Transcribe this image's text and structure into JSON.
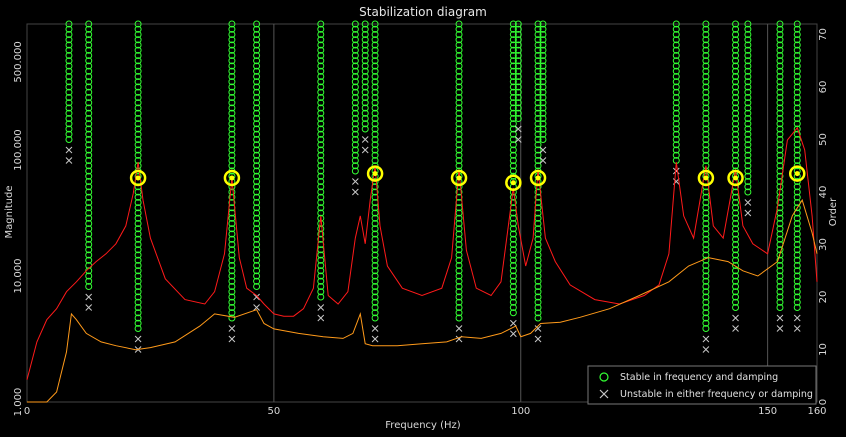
{
  "chart_data": {
    "type": "stabilization",
    "title": "Stabilization diagram",
    "xlabel": "Frequency (Hz)",
    "ylabel": "Magnitude",
    "y2label": "Order",
    "xlim": [
      0,
      160
    ],
    "ylim": [
      1000,
      1000000
    ],
    "ylog": true,
    "y2lim": [
      0,
      72
    ],
    "x_ticks": [
      0,
      50,
      100,
      150,
      160
    ],
    "x_tick_labels": [
      "0",
      "50",
      "100",
      "150",
      "160"
    ],
    "y_ticks": [
      1000,
      10000,
      100000,
      500000
    ],
    "y_tick_labels": [
      "1.000",
      "10.000",
      "100.000",
      "500.000"
    ],
    "y2_ticks": [
      0,
      10,
      20,
      30,
      40,
      50,
      60,
      70
    ],
    "y2_tick_labels": [
      "0",
      "10",
      "20",
      "30",
      "40",
      "50",
      "60",
      "70"
    ],
    "grid": "vertical lines at 50, 100, 150 Hz",
    "legend_position": "bottom-right",
    "legend": [
      {
        "symbol": "circle",
        "color": "#33ff33",
        "label": "Stable in frequency and damping"
      },
      {
        "symbol": "cross",
        "color": "#c8c8c8",
        "label": "Unstable in either frequency or damping"
      }
    ],
    "colors": {
      "stable": "#33ff33",
      "unstable": "#c8c8c8",
      "sum_frf": "#ff1a1a",
      "mif": "#ff9a1a",
      "selected": "#ffff00",
      "grid": "#555555"
    },
    "stable_columns": [
      {
        "freq": 8.5,
        "orders": [
          50,
          72
        ]
      },
      {
        "freq": 12.5,
        "orders": [
          22,
          72
        ]
      },
      {
        "freq": 22.5,
        "orders": [
          14,
          72
        ]
      },
      {
        "freq": 41.5,
        "orders": [
          16,
          72
        ]
      },
      {
        "freq": 46.5,
        "orders": [
          22,
          72
        ]
      },
      {
        "freq": 59.5,
        "orders": [
          20,
          72
        ]
      },
      {
        "freq": 66.5,
        "orders": [
          44,
          72
        ]
      },
      {
        "freq": 68.5,
        "orders": [
          52,
          72
        ]
      },
      {
        "freq": 70.5,
        "orders": [
          16,
          72
        ]
      },
      {
        "freq": 87.5,
        "orders": [
          16,
          72
        ]
      },
      {
        "freq": 98.5,
        "orders": [
          17,
          72
        ]
      },
      {
        "freq": 99.5,
        "orders": [
          54,
          72
        ]
      },
      {
        "freq": 103.5,
        "orders": [
          16,
          72
        ]
      },
      {
        "freq": 104.5,
        "orders": [
          50,
          72
        ]
      },
      {
        "freq": 131.5,
        "orders": [
          46,
          72
        ]
      },
      {
        "freq": 137.5,
        "orders": [
          14,
          72
        ]
      },
      {
        "freq": 143.5,
        "orders": [
          18,
          72
        ]
      },
      {
        "freq": 146.0,
        "orders": [
          40,
          72
        ]
      },
      {
        "freq": 152.5,
        "orders": [
          18,
          72
        ]
      },
      {
        "freq": 156.0,
        "orders": [
          18,
          72
        ]
      }
    ],
    "selected_modes": [
      {
        "freq": 22.5,
        "magnitude": 60000
      },
      {
        "freq": 41.5,
        "magnitude": 60000
      },
      {
        "freq": 70.5,
        "magnitude": 65000
      },
      {
        "freq": 87.5,
        "magnitude": 60000
      },
      {
        "freq": 98.5,
        "magnitude": 55000
      },
      {
        "freq": 103.5,
        "magnitude": 60000
      },
      {
        "freq": 137.5,
        "magnitude": 60000
      },
      {
        "freq": 143.5,
        "magnitude": 60000
      },
      {
        "freq": 156.0,
        "magnitude": 65000
      }
    ],
    "series": [
      {
        "color": "#ff1a1a",
        "x": [
          0,
          2,
          4,
          6,
          8,
          10,
          12,
          14,
          16,
          18,
          20,
          21.5,
          22.5,
          23.5,
          25,
          28,
          32,
          36,
          38,
          40,
          41.5,
          43,
          44.5,
          46.5,
          48,
          50,
          52,
          54,
          56,
          58,
          59.5,
          61,
          63,
          65,
          66.5,
          67.5,
          68.5,
          69.5,
          70.5,
          71.5,
          73,
          76,
          80,
          84,
          86,
          87.5,
          89,
          91,
          94,
          96,
          98.5,
          99.5,
          101,
          102.5,
          103.5,
          105,
          107,
          110,
          115,
          120,
          125,
          128,
          130,
          131.5,
          133,
          135,
          137.5,
          139,
          141,
          143.5,
          145,
          147,
          150,
          152,
          154,
          156,
          157.5,
          159,
          160
        ],
        "y": [
          1500,
          3000,
          4500,
          5500,
          7500,
          9000,
          11000,
          13000,
          15000,
          18000,
          25000,
          45000,
          80000,
          40000,
          20000,
          9500,
          6500,
          6000,
          7500,
          15000,
          60000,
          14000,
          8000,
          7000,
          6000,
          5000,
          4800,
          4800,
          5500,
          8000,
          30000,
          7000,
          6000,
          7500,
          20000,
          30000,
          18000,
          40000,
          75000,
          25000,
          12000,
          8000,
          7000,
          8000,
          14000,
          70000,
          16000,
          8000,
          7000,
          9000,
          50000,
          25000,
          12000,
          20000,
          70000,
          20000,
          13000,
          8500,
          6500,
          6000,
          7000,
          8500,
          15000,
          80000,
          30000,
          20000,
          75000,
          25000,
          20000,
          70000,
          25000,
          18000,
          15000,
          35000,
          120000,
          150000,
          100000,
          30000,
          9000
        ]
      },
      {
        "color": "#ff9a1a",
        "x": [
          0,
          4,
          6,
          8,
          9,
          10,
          12,
          15,
          18,
          22,
          25,
          30,
          35,
          38,
          42,
          46.5,
          48,
          50,
          55,
          60,
          64,
          66,
          67.5,
          68.5,
          70,
          75,
          80,
          85,
          88,
          92,
          96,
          99,
          100,
          102,
          104,
          108,
          112,
          118,
          124,
          130,
          134,
          138,
          142,
          145,
          148,
          152,
          155,
          157,
          159,
          160
        ],
        "y": [
          1000,
          1000,
          1200,
          2500,
          5000,
          4500,
          3500,
          3000,
          2800,
          2600,
          2700,
          3000,
          4000,
          5000,
          4700,
          5400,
          4200,
          3800,
          3500,
          3300,
          3200,
          3500,
          5000,
          2900,
          2800,
          2800,
          2900,
          3000,
          3300,
          3200,
          3500,
          4000,
          3300,
          3500,
          4200,
          4300,
          4700,
          5500,
          7000,
          9000,
          12000,
          14000,
          13000,
          11000,
          10000,
          13000,
          30000,
          40000,
          22000,
          15000
        ]
      }
    ]
  }
}
